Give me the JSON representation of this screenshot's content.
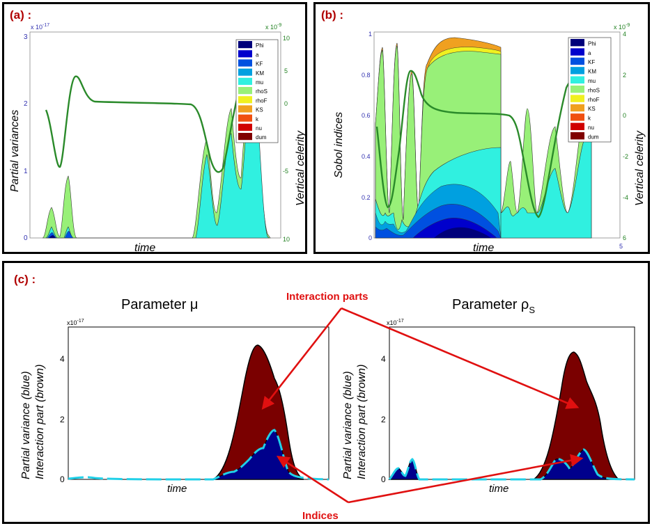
{
  "colors": {
    "Phi": "#00007a",
    "a": "#0000cc",
    "KF": "#0050e0",
    "KM": "#00a0e0",
    "mu": "#30f0e0",
    "rhoS": "#98f078",
    "rhoF": "#f0f020",
    "KS": "#f0a020",
    "k": "#f05010",
    "nu": "#d00000",
    "dum": "#800000",
    "celerity": "#2a8a2a",
    "blue_area": "#00008c",
    "brown_area": "#7a0000",
    "cyan_line": "#20d0e8",
    "arrow": "#e01010",
    "label_red": "#b00000"
  },
  "panel_a": {
    "label": "(a) :",
    "ylabel": "Partial variances",
    "y2label": "Vertical celerity",
    "xlabel": "time",
    "yticks": [
      "0",
      "1",
      "2",
      "3"
    ],
    "y_exp": "x 10",
    "y_exp_pow": "-17",
    "y2ticks": [
      "10",
      "5",
      "0",
      "-5",
      "10"
    ],
    "y2_exp": "x 10",
    "y2_exp_pow": "-9"
  },
  "panel_b": {
    "label": "(b) :",
    "ylabel": "Sobol indices",
    "y2label": "Vertical celerity",
    "xlabel": "time",
    "yticks": [
      "0",
      "0.2",
      "0.4",
      "0.6",
      "0.8",
      "1"
    ],
    "y2ticks": [
      "4",
      "2",
      "0",
      "-2",
      "-4",
      "6"
    ],
    "y2_exp": "x 10",
    "y2_exp_pow": "-9",
    "extra_tick": "5"
  },
  "legend": [
    "Phi",
    "a",
    "KF",
    "KM",
    "mu",
    "rhoS",
    "rhoF",
    "KS",
    "k",
    "nu",
    "dum"
  ],
  "panel_c": {
    "label": "(c) :",
    "left_title": "Parameter μ",
    "right_title_main": "Parameter ρ",
    "right_title_sub": "S",
    "ylabel_line1": "Partial variance (blue)",
    "ylabel_line2": "Interaction part (brown)",
    "xlabel": "time",
    "yticks": [
      "0",
      "2",
      "4"
    ],
    "y_exp": "x10",
    "y_exp_pow": "-17",
    "annotation_top": "Interaction parts",
    "annotation_bottom": "Indices"
  },
  "chart_data": [
    {
      "type": "area",
      "title": "(a)",
      "xlabel": "time",
      "ylabel": "Partial variances",
      "ylim": [
        0,
        3
      ],
      "y_scale_exponent": -17,
      "y2label": "Vertical celerity",
      "y2_scale_exponent": -9,
      "legend": [
        "Phi",
        "a",
        "KF",
        "KM",
        "mu",
        "rhoS",
        "rhoF",
        "KS",
        "k",
        "nu",
        "dum"
      ],
      "legend_position": "top-right",
      "x": [
        0,
        0.05,
        0.1,
        0.15,
        0.2,
        0.3,
        0.4,
        0.5,
        0.6,
        0.65,
        0.7,
        0.75,
        0.8,
        0.85,
        0.9,
        0.95,
        1
      ],
      "series": [
        {
          "name": "mu",
          "values": [
            0,
            0.05,
            0,
            0.1,
            0,
            0,
            0,
            0,
            0,
            0,
            1.2,
            0.4,
            1.6,
            0.5,
            2.2,
            0.3,
            0
          ]
        },
        {
          "name": "rhoS",
          "values": [
            0,
            0.4,
            0.05,
            0.9,
            0,
            0,
            0,
            0,
            0,
            0,
            1.4,
            0.5,
            1.8,
            0.6,
            2.6,
            0.4,
            0
          ]
        },
        {
          "name": "Vertical celerity",
          "values": [
            1.9,
            1.1,
            2.4,
            2.05,
            2.0,
            2.0,
            2.0,
            2.0,
            1.95,
            1.6,
            1.1,
            1.7,
            2.3,
            2.5,
            2.4,
            2.2,
            2.0
          ]
        }
      ]
    },
    {
      "type": "area",
      "title": "(b)",
      "xlabel": "time",
      "ylabel": "Sobol indices",
      "ylim": [
        0,
        1
      ],
      "y2label": "Vertical celerity",
      "y2_scale_exponent": -9,
      "legend": [
        "Phi",
        "a",
        "KF",
        "KM",
        "mu",
        "rhoS",
        "rhoF",
        "KS",
        "k",
        "nu",
        "dum"
      ],
      "legend_position": "top-right",
      "x": [
        0,
        0.05,
        0.1,
        0.15,
        0.2,
        0.3,
        0.4,
        0.5,
        0.55,
        0.6,
        0.7,
        0.8,
        0.9,
        1
      ],
      "series": [
        {
          "name": "Phi",
          "values": [
            0.02,
            0.03,
            0.02,
            0.04,
            0.03,
            0.06,
            0.07,
            0.05,
            0.01,
            0.01,
            0.01,
            0.01,
            0.01,
            0.01
          ]
        },
        {
          "name": "KM",
          "values": [
            0.06,
            0.08,
            0.04,
            0.12,
            0.09,
            0.22,
            0.25,
            0.2,
            0.02,
            0.02,
            0.02,
            0.02,
            0.02,
            0.02
          ]
        },
        {
          "name": "mu",
          "values": [
            0.12,
            0.14,
            0.06,
            0.2,
            0.16,
            0.32,
            0.36,
            0.34,
            0.1,
            0.2,
            0.1,
            0.3,
            0.2,
            0.4
          ]
        },
        {
          "name": "rhoS",
          "values": [
            0.56,
            0.94,
            0.95,
            0.82,
            0.9,
            0.92,
            0.92,
            0.92,
            0.28,
            0.5,
            0.28,
            0.6,
            0.7,
            0.8
          ]
        },
        {
          "name": "KS",
          "values": [
            0.56,
            0.94,
            0.96,
            0.83,
            0.97,
            0.96,
            0.95,
            0.94,
            0.28,
            0.5,
            0.28,
            0.6,
            0.7,
            0.8
          ]
        }
      ]
    },
    {
      "type": "area",
      "title": "Parameter μ",
      "xlabel": "time",
      "ylabel": "Partial variance (blue) / Interaction part (brown)",
      "ylim": [
        0,
        5
      ],
      "y_scale_exponent": -17,
      "x": [
        0,
        0.1,
        0.2,
        0.3,
        0.4,
        0.5,
        0.6,
        0.65,
        0.7,
        0.75,
        0.8,
        0.85,
        0.9,
        0.95,
        1
      ],
      "series": [
        {
          "name": "Interaction part (brown)",
          "values": [
            0,
            0,
            0,
            0,
            0,
            0,
            0,
            0.3,
            2.5,
            4.4,
            3.8,
            2.0,
            0.3,
            0,
            0
          ]
        },
        {
          "name": "Partial variance (blue)",
          "values": [
            0,
            0.05,
            0,
            0,
            0,
            0,
            0,
            0.1,
            0.8,
            1.3,
            1.6,
            0.9,
            0.1,
            0,
            0
          ]
        }
      ]
    },
    {
      "type": "area",
      "title": "Parameter ρS",
      "xlabel": "time",
      "ylabel": "Partial variance (blue) / Interaction part (brown)",
      "ylim": [
        0,
        5
      ],
      "y_scale_exponent": -17,
      "x": [
        0,
        0.05,
        0.1,
        0.15,
        0.2,
        0.3,
        0.4,
        0.5,
        0.6,
        0.65,
        0.7,
        0.75,
        0.8,
        0.85,
        0.9,
        0.95,
        1
      ],
      "series": [
        {
          "name": "Interaction part (brown)",
          "values": [
            0,
            0.4,
            0.1,
            0.7,
            0,
            0,
            0,
            0,
            0,
            0.3,
            2.5,
            4.1,
            3.6,
            1.8,
            0.3,
            0,
            0
          ]
        },
        {
          "name": "Partial variance (blue)",
          "values": [
            0,
            0.4,
            0.1,
            0.7,
            0,
            0,
            0,
            0,
            0,
            0.1,
            0.6,
            0.7,
            1.0,
            0.6,
            0.1,
            0,
            0
          ]
        }
      ]
    }
  ]
}
